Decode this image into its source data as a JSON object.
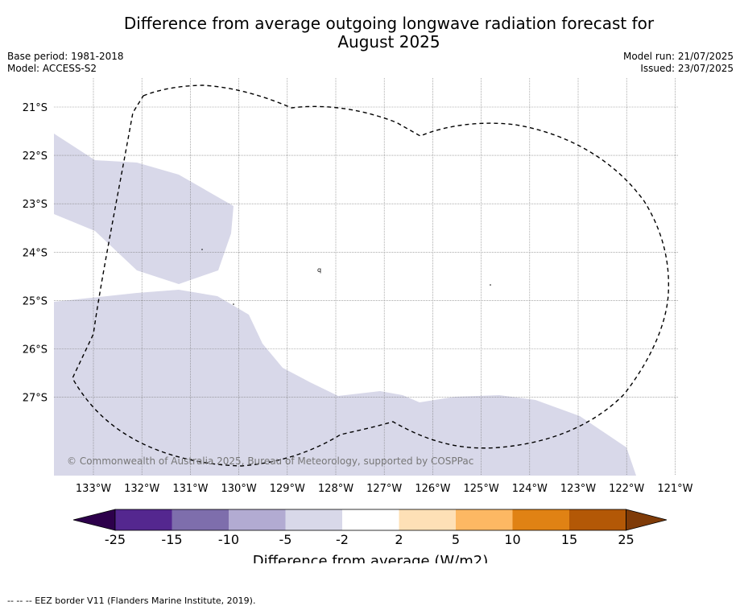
{
  "title_line1": "Difference from average outgoing longwave radiation forecast for",
  "title_line2": "August 2025",
  "base_period": "Base period: 1981-2018",
  "model": "Model: ACCESS-S2",
  "model_run": "Model run: 21/07/2025",
  "issued": "Issued: 23/07/2025",
  "copyright": "© Commonwealth of Australia 2025, Bureau of Meteorology, supported by COSPPac",
  "lat_labels": [
    "21°S",
    "22°S",
    "23°S",
    "24°S",
    "25°S",
    "26°S",
    "27°S"
  ],
  "lon_labels": [
    "133°W",
    "132°W",
    "131°W",
    "130°W",
    "129°W",
    "128°W",
    "127°W",
    "126°W",
    "125°W",
    "124°W",
    "123°W",
    "122°W",
    "121°W"
  ],
  "colorbar": {
    "title": "Difference from average (W/m2)",
    "tick_labels": [
      "-25",
      "-15",
      "-10",
      "-5",
      "-2",
      "2",
      "5",
      "10",
      "15",
      "25"
    ],
    "colors": [
      "#54278f",
      "#7e6eac",
      "#b2abd2",
      "#d8d8e9",
      "#ffffff",
      "#fee0b6",
      "#fdb863",
      "#e08214",
      "#b35806"
    ],
    "under_color": "#2d004b",
    "over_color": "#7f3b08"
  },
  "footer": "-- -- -- EEZ border V11 (Flanders Marine Institute, 2019).",
  "shade_color": "#d8d8e9"
}
